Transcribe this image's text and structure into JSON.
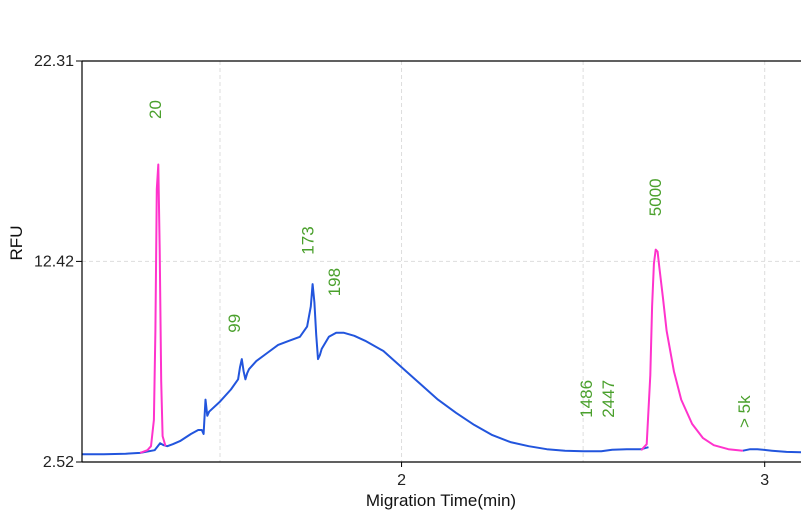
{
  "chart_data": {
    "type": "line",
    "title": "",
    "xlabel": "Migration Time(min)",
    "ylabel": "RFU",
    "xlim": [
      1.12,
      3.1
    ],
    "ylim": [
      2.52,
      22.31
    ],
    "x_ticks": [
      {
        "value": 2,
        "label": "2"
      },
      {
        "value": 3,
        "label": "3"
      }
    ],
    "x_gridlines": [
      1.5,
      2,
      2.5,
      3
    ],
    "y_ticks": [
      {
        "value": 22.31,
        "label": "22.31"
      },
      {
        "value": 12.42,
        "label": "12.42"
      },
      {
        "value": 2.52,
        "label": "2.52"
      }
    ],
    "grid": true,
    "series": [
      {
        "color": "#2255dd",
        "points": [
          [
            1.12,
            2.9
          ],
          [
            1.18,
            2.9
          ],
          [
            1.24,
            2.93
          ],
          [
            1.28,
            2.97
          ],
          [
            1.32,
            3.1
          ],
          [
            1.335,
            3.45
          ],
          [
            1.345,
            3.35
          ],
          [
            1.355,
            3.3
          ],
          [
            1.37,
            3.4
          ],
          [
            1.39,
            3.55
          ],
          [
            1.42,
            3.9
          ],
          [
            1.44,
            4.1
          ],
          [
            1.45,
            4.1
          ],
          [
            1.455,
            3.9
          ],
          [
            1.46,
            5.6
          ],
          [
            1.465,
            4.8
          ],
          [
            1.47,
            5.0
          ],
          [
            1.5,
            5.5
          ],
          [
            1.53,
            6.1
          ],
          [
            1.55,
            6.6
          ],
          [
            1.555,
            7.2
          ],
          [
            1.56,
            7.6
          ],
          [
            1.565,
            7.0
          ],
          [
            1.57,
            6.6
          ],
          [
            1.575,
            6.9
          ],
          [
            1.58,
            7.1
          ],
          [
            1.6,
            7.5
          ],
          [
            1.63,
            7.9
          ],
          [
            1.66,
            8.3
          ],
          [
            1.69,
            8.5
          ],
          [
            1.72,
            8.7
          ],
          [
            1.74,
            9.2
          ],
          [
            1.75,
            10.2
          ],
          [
            1.755,
            11.3
          ],
          [
            1.76,
            10.4
          ],
          [
            1.765,
            8.8
          ],
          [
            1.77,
            7.6
          ],
          [
            1.775,
            7.8
          ],
          [
            1.78,
            8.1
          ],
          [
            1.8,
            8.7
          ],
          [
            1.82,
            8.9
          ],
          [
            1.84,
            8.9
          ],
          [
            1.87,
            8.75
          ],
          [
            1.9,
            8.5
          ],
          [
            1.95,
            8.0
          ],
          [
            2.0,
            7.2
          ],
          [
            2.05,
            6.4
          ],
          [
            2.1,
            5.6
          ],
          [
            2.15,
            4.95
          ],
          [
            2.2,
            4.35
          ],
          [
            2.25,
            3.85
          ],
          [
            2.3,
            3.5
          ],
          [
            2.35,
            3.3
          ],
          [
            2.4,
            3.15
          ],
          [
            2.45,
            3.08
          ],
          [
            2.5,
            3.05
          ],
          [
            2.55,
            3.05
          ],
          [
            2.58,
            3.12
          ],
          [
            2.62,
            3.15
          ],
          [
            2.66,
            3.15
          ],
          [
            2.68,
            3.25
          ]
        ]
      },
      {
        "color": "#ff33cc",
        "points": [
          [
            1.28,
            2.97
          ],
          [
            1.3,
            3.1
          ],
          [
            1.31,
            3.3
          ],
          [
            1.318,
            4.6
          ],
          [
            1.322,
            9.0
          ],
          [
            1.326,
            16.0
          ],
          [
            1.33,
            17.2
          ],
          [
            1.334,
            13.0
          ],
          [
            1.338,
            6.5
          ],
          [
            1.342,
            3.8
          ],
          [
            1.35,
            3.3
          ]
        ]
      },
      {
        "color": "#ff33cc",
        "points": [
          [
            2.66,
            3.1
          ],
          [
            2.675,
            3.4
          ],
          [
            2.685,
            6.8
          ],
          [
            2.69,
            10.2
          ],
          [
            2.695,
            12.3
          ],
          [
            2.7,
            13.0
          ],
          [
            2.705,
            12.9
          ],
          [
            2.71,
            12.1
          ],
          [
            2.72,
            10.6
          ],
          [
            2.73,
            9.0
          ],
          [
            2.75,
            7.0
          ],
          [
            2.77,
            5.6
          ],
          [
            2.8,
            4.4
          ],
          [
            2.83,
            3.7
          ],
          [
            2.86,
            3.35
          ],
          [
            2.9,
            3.15
          ],
          [
            2.94,
            3.08
          ]
        ]
      },
      {
        "color": "#2255dd",
        "points": [
          [
            2.94,
            3.08
          ],
          [
            2.96,
            3.15
          ],
          [
            2.98,
            3.15
          ],
          [
            3.02,
            3.08
          ],
          [
            3.06,
            3.02
          ],
          [
            3.1,
            3.0
          ]
        ]
      }
    ],
    "peak_labels": [
      {
        "text": "20",
        "x": 1.338,
        "y": 19.45
      },
      {
        "text": "99",
        "x": 1.555,
        "y": 8.9
      },
      {
        "text": "173",
        "x": 1.758,
        "y": 12.75
      },
      {
        "text": "198",
        "x": 1.83,
        "y": 10.7
      },
      {
        "text": "1486",
        "x": 2.525,
        "y": 4.7
      },
      {
        "text": "2447",
        "x": 2.585,
        "y": 4.7
      },
      {
        "text": "5000",
        "x": 2.715,
        "y": 14.65
      },
      {
        "text": "> 5k",
        "x": 2.96,
        "y": 4.2
      }
    ],
    "label_color": "#4aa02c"
  }
}
